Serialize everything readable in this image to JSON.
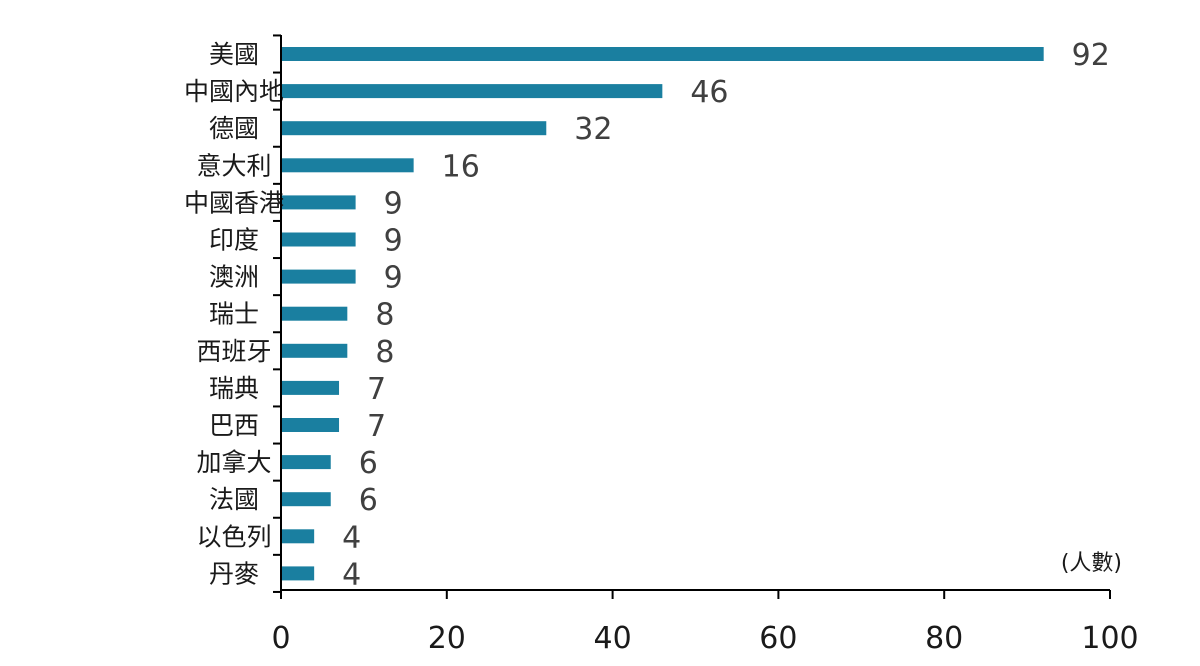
{
  "chart_data": {
    "type": "bar",
    "orientation": "horizontal",
    "categories": [
      "美國",
      "中國內地",
      "德國",
      "意大利",
      "中國香港",
      "印度",
      "澳洲",
      "瑞士",
      "西班牙",
      "瑞典",
      "巴西",
      "加拿大",
      "法國",
      "以色列",
      "丹麥"
    ],
    "values": [
      92,
      46,
      32,
      16,
      9,
      9,
      9,
      8,
      8,
      7,
      7,
      6,
      6,
      4,
      4
    ],
    "data_labels": [
      "92",
      "46",
      "32",
      "16",
      "9",
      "9",
      "9",
      "8",
      "8",
      "7",
      "7",
      "6",
      "6",
      "4",
      "4"
    ],
    "x_ticks": [
      "0",
      "20",
      "40",
      "60",
      "80",
      "100"
    ],
    "x_tick_values": [
      0,
      20,
      40,
      60,
      80,
      100
    ],
    "xlim": [
      0,
      100
    ],
    "unit_label": "(人數)",
    "bar_color": "#1a7fa0",
    "axis_color": "#000000",
    "grid": false,
    "legend": "none"
  }
}
